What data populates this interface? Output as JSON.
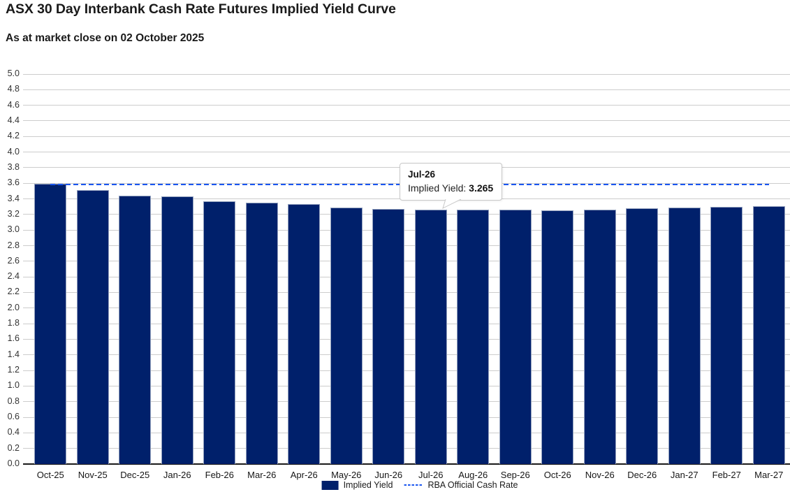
{
  "chart_data": {
    "type": "bar",
    "title": "ASX 30 Day Interbank Cash Rate Futures Implied Yield Curve",
    "subtitle": "As at market close on 02 October 2025",
    "categories": [
      "Oct-25",
      "Nov-25",
      "Dec-25",
      "Jan-26",
      "Feb-26",
      "Mar-26",
      "Apr-26",
      "May-26",
      "Jun-26",
      "Jul-26",
      "Aug-26",
      "Sep-26",
      "Oct-26",
      "Nov-26",
      "Dec-26",
      "Jan-27",
      "Feb-27",
      "Mar-27"
    ],
    "series": [
      {
        "name": "Implied Yield",
        "type": "bar",
        "color": "#00206B",
        "values": [
          3.595,
          3.51,
          3.445,
          3.435,
          3.365,
          3.35,
          3.33,
          3.285,
          3.27,
          3.265,
          3.26,
          3.26,
          3.255,
          3.265,
          3.28,
          3.285,
          3.3,
          3.31
        ]
      },
      {
        "name": "RBA Official Cash Rate",
        "type": "line",
        "style": "dashed",
        "color": "#1A56F0",
        "value": 3.6
      }
    ],
    "xlabel": "",
    "ylabel": "",
    "ylim": [
      0,
      5
    ],
    "ytick_step": 0.2,
    "grid": "horizontal",
    "legend_position": "bottom"
  },
  "tooltip": {
    "category": "Jul-26",
    "series_label": "Implied Yield: ",
    "value": "3.265"
  },
  "colors": {
    "bar": "#00206B",
    "bar_border": "#93A1BE",
    "rba_line": "#1A56F0",
    "gridline": "#CCCCCC",
    "axis_line": "#1A1A1A",
    "title_text": "#1A1A1A",
    "tick_text": "#333333",
    "x_tick_text": "#161616",
    "tooltip_border": "#C8C8C8",
    "tooltip_bg": "#FFFFFF"
  }
}
